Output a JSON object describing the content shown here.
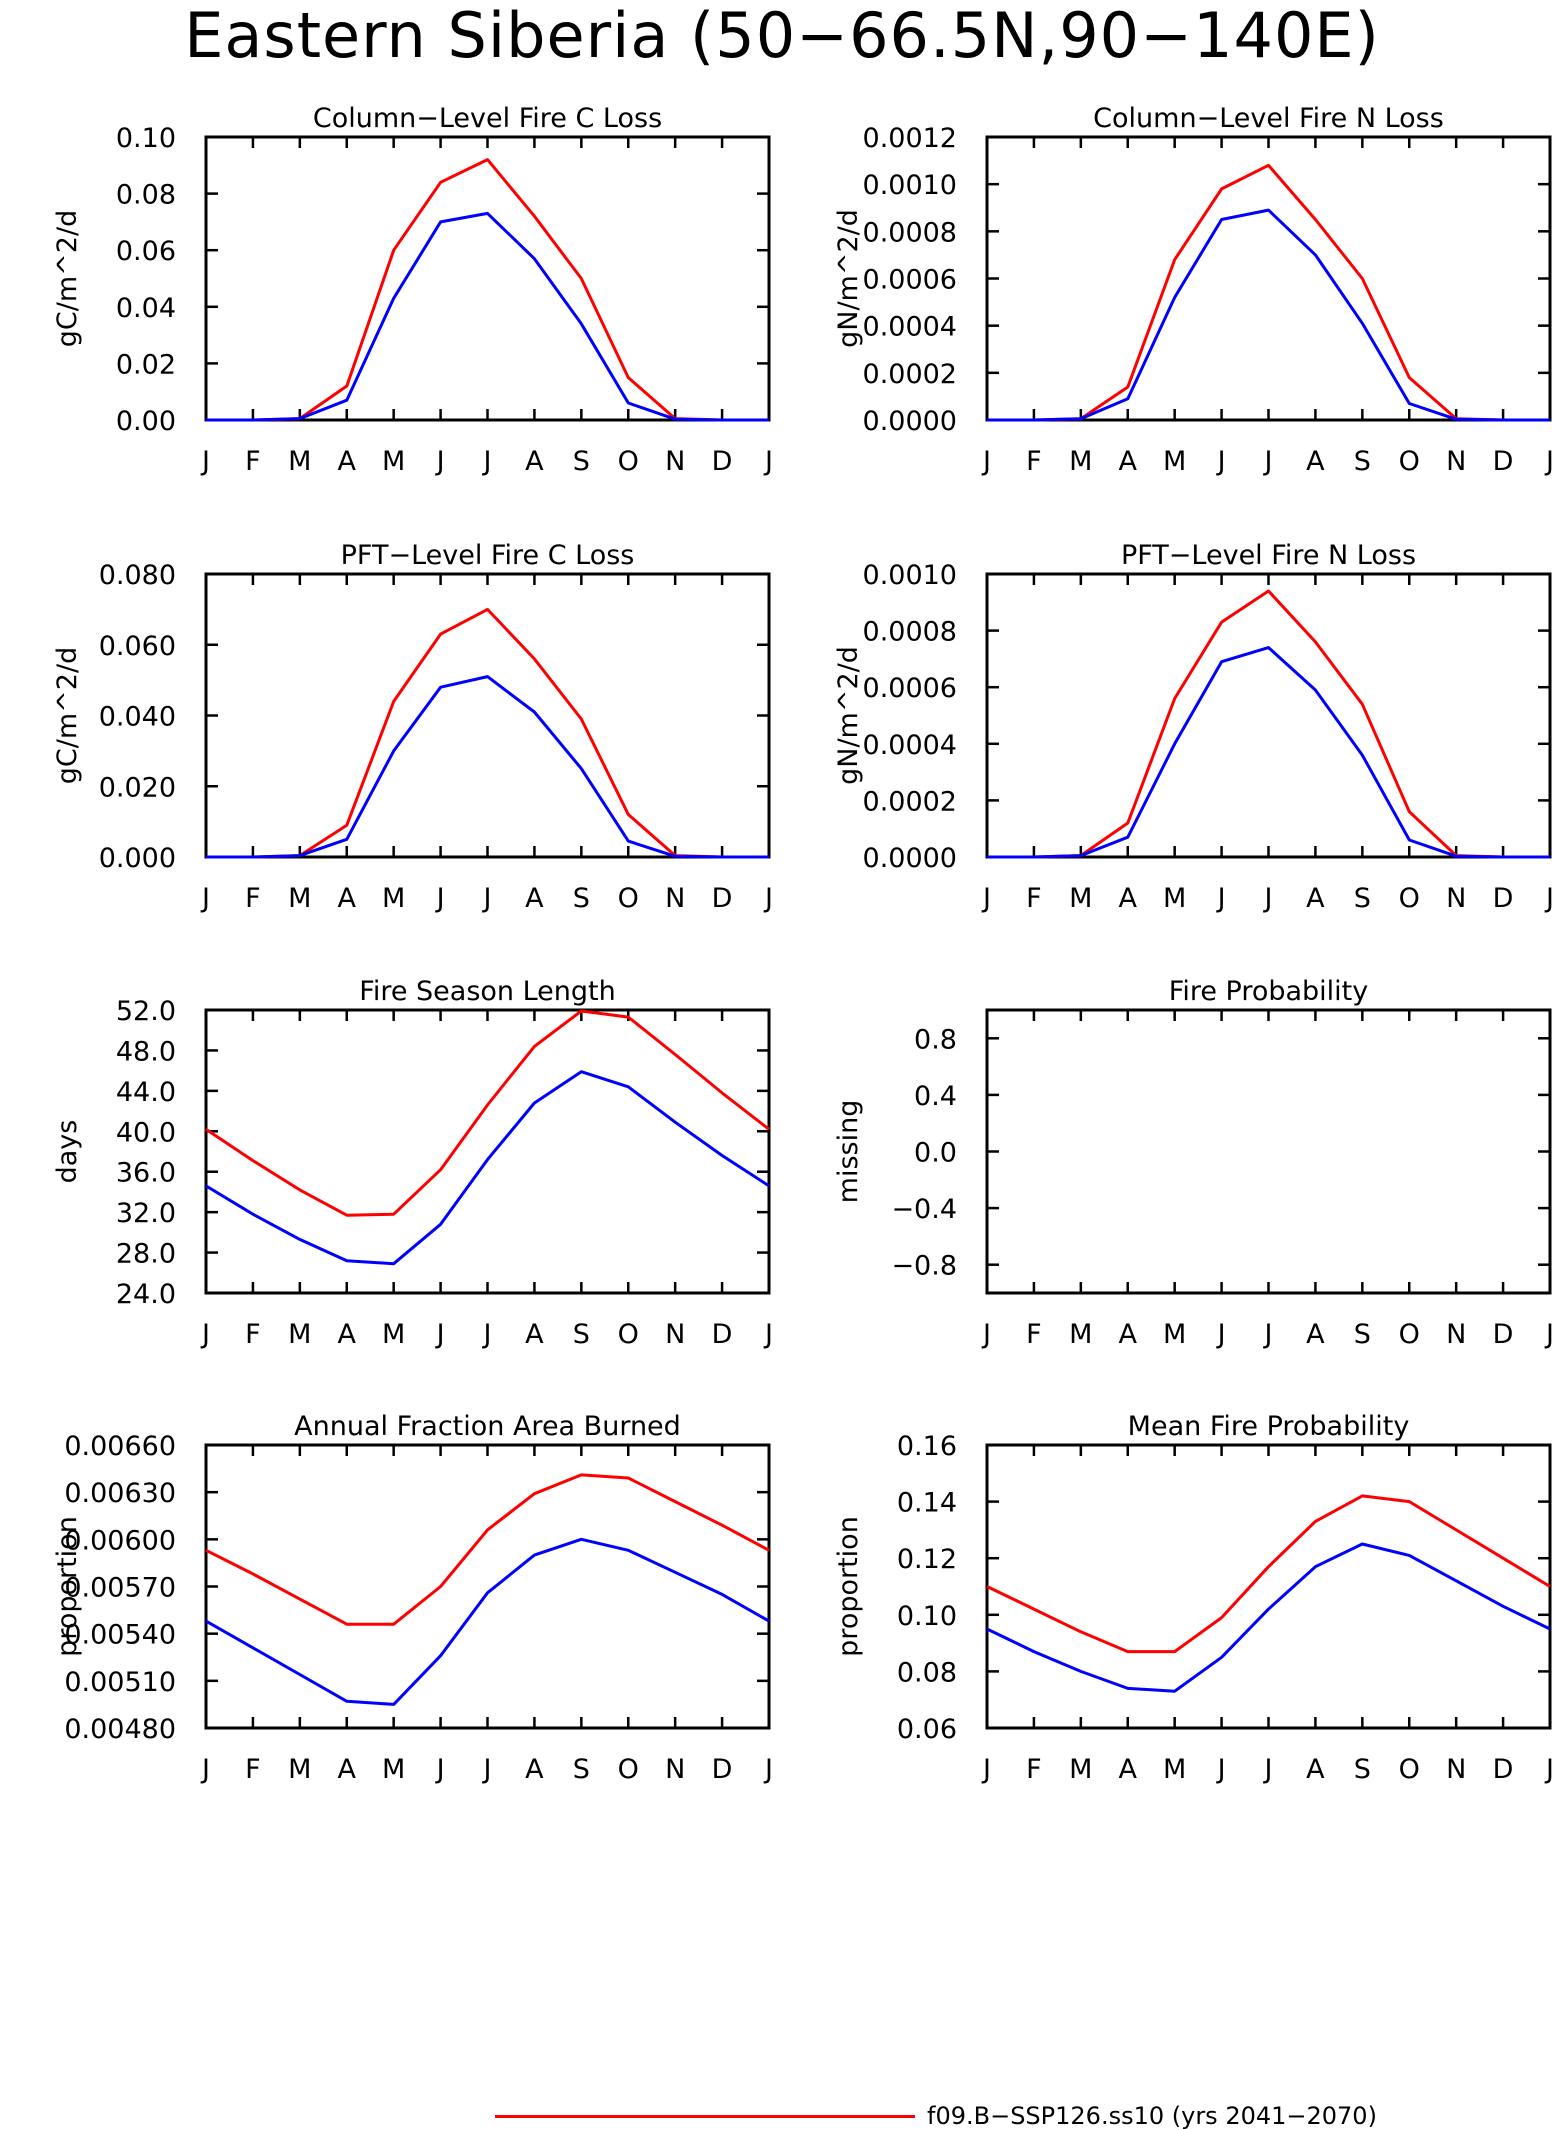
{
  "title": "Eastern Siberia (50−66.5N,90−140E)",
  "legend": {
    "entries": [
      {
        "label": "f09.B−SSP126.ss10 (yrs 2041−2070)",
        "color": "#ff0000"
      }
    ]
  },
  "chart_data": [
    {
      "type": "line",
      "title": "Column−Level Fire C Loss",
      "ylabel": "gC/m^2/d",
      "xlabel": "",
      "categories": [
        "J",
        "F",
        "M",
        "A",
        "M",
        "J",
        "J",
        "A",
        "S",
        "O",
        "N",
        "D",
        "J"
      ],
      "ylim": [
        0,
        0.1
      ],
      "yticks": [
        "0.00",
        "0.02",
        "0.04",
        "0.06",
        "0.08",
        "0.10"
      ],
      "series": [
        {
          "color": "#ff0000",
          "values": [
            0,
            0,
            0.0005,
            0.012,
            0.06,
            0.084,
            0.092,
            0.072,
            0.05,
            0.015,
            0.0005,
            0,
            0
          ]
        },
        {
          "color": "#0000ff",
          "values": [
            0,
            0,
            0.0005,
            0.007,
            0.043,
            0.07,
            0.073,
            0.057,
            0.034,
            0.006,
            0.0003,
            0,
            0
          ]
        }
      ]
    },
    {
      "type": "line",
      "title": "Column−Level Fire N Loss",
      "ylabel": "gN/m^2/d",
      "xlabel": "",
      "categories": [
        "J",
        "F",
        "M",
        "A",
        "M",
        "J",
        "J",
        "A",
        "S",
        "O",
        "N",
        "D",
        "J"
      ],
      "ylim": [
        0,
        0.0012
      ],
      "yticks": [
        "0.0000",
        "0.0002",
        "0.0004",
        "0.0006",
        "0.0008",
        "0.0010",
        "0.0012"
      ],
      "series": [
        {
          "color": "#ff0000",
          "values": [
            0,
            0,
            5e-06,
            0.00014,
            0.00068,
            0.00098,
            0.00108,
            0.00085,
            0.0006,
            0.00018,
            5e-06,
            0,
            0
          ]
        },
        {
          "color": "#0000ff",
          "values": [
            0,
            0,
            5e-06,
            9e-05,
            0.00052,
            0.00085,
            0.00089,
            0.0007,
            0.00041,
            7e-05,
            3e-06,
            0,
            0
          ]
        }
      ]
    },
    {
      "type": "line",
      "title": "PFT−Level Fire C Loss",
      "ylabel": "gC/m^2/d",
      "xlabel": "",
      "categories": [
        "J",
        "F",
        "M",
        "A",
        "M",
        "J",
        "J",
        "A",
        "S",
        "O",
        "N",
        "D",
        "J"
      ],
      "ylim": [
        0,
        0.08
      ],
      "yticks": [
        "0.000",
        "0.020",
        "0.040",
        "0.060",
        "0.080"
      ],
      "series": [
        {
          "color": "#ff0000",
          "values": [
            0,
            0,
            0.0004,
            0.009,
            0.044,
            0.063,
            0.07,
            0.056,
            0.039,
            0.012,
            0.0004,
            0,
            0
          ]
        },
        {
          "color": "#0000ff",
          "values": [
            0,
            0,
            0.0004,
            0.005,
            0.03,
            0.048,
            0.051,
            0.041,
            0.025,
            0.0045,
            0.0002,
            0,
            0
          ]
        }
      ]
    },
    {
      "type": "line",
      "title": "PFT−Level Fire N Loss",
      "ylabel": "gN/m^2/d",
      "xlabel": "",
      "categories": [
        "J",
        "F",
        "M",
        "A",
        "M",
        "J",
        "J",
        "A",
        "S",
        "O",
        "N",
        "D",
        "J"
      ],
      "ylim": [
        0,
        0.001
      ],
      "yticks": [
        "0.0000",
        "0.0002",
        "0.0004",
        "0.0006",
        "0.0008",
        "0.0010"
      ],
      "series": [
        {
          "color": "#ff0000",
          "values": [
            0,
            0,
            5e-06,
            0.00012,
            0.00056,
            0.00083,
            0.00094,
            0.00076,
            0.00054,
            0.00016,
            5e-06,
            0,
            0
          ]
        },
        {
          "color": "#0000ff",
          "values": [
            0,
            0,
            5e-06,
            7e-05,
            0.0004,
            0.00069,
            0.00074,
            0.00059,
            0.00036,
            6e-05,
            3e-06,
            0,
            0
          ]
        }
      ]
    },
    {
      "type": "line",
      "title": "Fire Season Length",
      "ylabel": "days",
      "xlabel": "",
      "categories": [
        "J",
        "F",
        "M",
        "A",
        "M",
        "J",
        "J",
        "A",
        "S",
        "O",
        "N",
        "D",
        "J"
      ],
      "ylim": [
        24,
        52
      ],
      "yticks": [
        "24.0",
        "28.0",
        "32.0",
        "36.0",
        "40.0",
        "44.0",
        "48.0",
        "52.0"
      ],
      "series": [
        {
          "color": "#ff0000",
          "values": [
            40.2,
            37.1,
            34.2,
            31.7,
            31.8,
            36.2,
            42.6,
            48.4,
            51.9,
            51.3,
            47.6,
            43.8,
            40.2
          ]
        },
        {
          "color": "#0000ff",
          "values": [
            34.6,
            31.8,
            29.3,
            27.2,
            26.9,
            30.8,
            37.2,
            42.8,
            45.9,
            44.4,
            40.9,
            37.6,
            34.6
          ]
        }
      ]
    },
    {
      "type": "line",
      "title": "Fire Probability",
      "ylabel": "missing",
      "xlabel": "",
      "categories": [
        "J",
        "F",
        "M",
        "A",
        "M",
        "J",
        "J",
        "A",
        "S",
        "O",
        "N",
        "D",
        "J"
      ],
      "ylim": [
        -1,
        1
      ],
      "yticks": [
        "−0.8",
        "−0.4",
        "0.0",
        "0.4",
        "0.8"
      ],
      "ytickvals": [
        -0.8,
        -0.4,
        0,
        0.4,
        0.8
      ],
      "series": []
    },
    {
      "type": "line",
      "title": "Annual Fraction Area Burned",
      "ylabel": "proportion",
      "xlabel": "",
      "categories": [
        "J",
        "F",
        "M",
        "A",
        "M",
        "J",
        "J",
        "A",
        "S",
        "O",
        "N",
        "D",
        "J"
      ],
      "ylim": [
        0.0048,
        0.0066
      ],
      "yticks": [
        "0.00480",
        "0.00510",
        "0.00540",
        "0.00570",
        "0.00600",
        "0.00630",
        "0.00660"
      ],
      "series": [
        {
          "color": "#ff0000",
          "values": [
            0.00593,
            0.00578,
            0.00562,
            0.00546,
            0.00546,
            0.0057,
            0.00606,
            0.00629,
            0.00641,
            0.00639,
            0.00624,
            0.00609,
            0.00593
          ]
        },
        {
          "color": "#0000ff",
          "values": [
            0.00548,
            0.00531,
            0.00514,
            0.00497,
            0.00495,
            0.00526,
            0.00566,
            0.0059,
            0.006,
            0.00593,
            0.00579,
            0.00565,
            0.00548
          ]
        }
      ]
    },
    {
      "type": "line",
      "title": "Mean Fire Probability",
      "ylabel": "proportion",
      "xlabel": "",
      "categories": [
        "J",
        "F",
        "M",
        "A",
        "M",
        "J",
        "J",
        "A",
        "S",
        "O",
        "N",
        "D",
        "J"
      ],
      "ylim": [
        0.06,
        0.16
      ],
      "yticks": [
        "0.06",
        "0.08",
        "0.10",
        "0.12",
        "0.14",
        "0.16"
      ],
      "series": [
        {
          "color": "#ff0000",
          "values": [
            0.11,
            0.102,
            0.094,
            0.087,
            0.087,
            0.099,
            0.117,
            0.133,
            0.142,
            0.14,
            0.13,
            0.12,
            0.11
          ]
        },
        {
          "color": "#0000ff",
          "values": [
            0.095,
            0.087,
            0.08,
            0.074,
            0.073,
            0.085,
            0.102,
            0.117,
            0.125,
            0.121,
            0.112,
            0.103,
            0.095
          ]
        }
      ]
    }
  ]
}
